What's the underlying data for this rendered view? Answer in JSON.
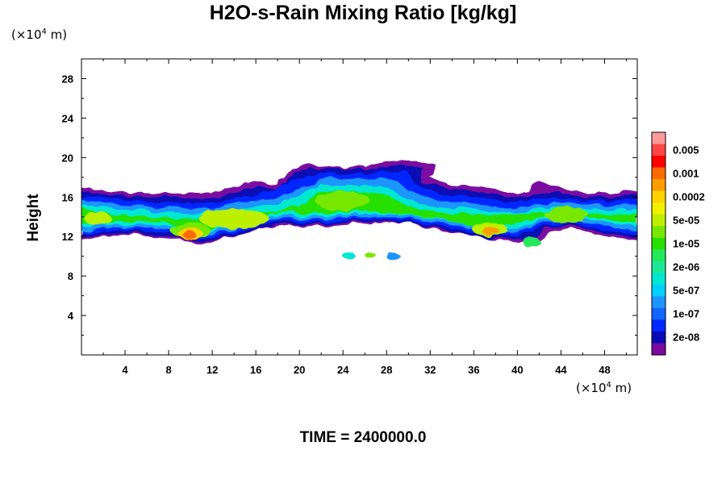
{
  "title": "H2O-s-Rain Mixing Ratio [kg/kg]",
  "y_unit": {
    "prefix": "(×10",
    "exp": "4",
    "suffix": " m)"
  },
  "x_unit": {
    "prefix": "(×10",
    "exp": "4",
    "suffix": " m)"
  },
  "ylabel": "Height",
  "footer": "TIME = 2400000.0",
  "chart_data": {
    "type": "contour",
    "title": "H2O-s-Rain Mixing Ratio [kg/kg]",
    "xlabel": "",
    "ylabel": "Height",
    "x_unit": "×10^4 m",
    "y_unit": "×10^4 m",
    "xlim": [
      0,
      51
    ],
    "ylim": [
      0,
      30
    ],
    "xticks": [
      4,
      8,
      12,
      16,
      20,
      24,
      28,
      32,
      36,
      40,
      44,
      48
    ],
    "yticks": [
      4,
      8,
      12,
      16,
      20,
      24,
      28
    ],
    "grid": false,
    "legend_position": "right",
    "colorbar": [
      {
        "label": "",
        "color": "#ff9a9a"
      },
      {
        "label": "0.005",
        "color": "#ff4646"
      },
      {
        "label": "",
        "color": "#ff0000"
      },
      {
        "label": "0.001",
        "color": "#ff6a00"
      },
      {
        "label": "",
        "color": "#ff9c00"
      },
      {
        "label": "0.0002",
        "color": "#ffd200"
      },
      {
        "label": "",
        "color": "#f0f000"
      },
      {
        "label": "5e-05",
        "color": "#bcf000"
      },
      {
        "label": "",
        "color": "#78e800"
      },
      {
        "label": "1e-05",
        "color": "#28e000"
      },
      {
        "label": "",
        "color": "#22e85a"
      },
      {
        "label": "2e-06",
        "color": "#1ee896"
      },
      {
        "label": "",
        "color": "#00e8d2"
      },
      {
        "label": "5e-07",
        "color": "#00d0ff"
      },
      {
        "label": "",
        "color": "#1e96ff"
      },
      {
        "label": "1e-07",
        "color": "#1464ff"
      },
      {
        "label": "",
        "color": "#0028ff"
      },
      {
        "label": "2e-08",
        "color": "#0a0ab4"
      },
      {
        "label": "",
        "color": "#7a0aa0"
      }
    ],
    "field": [
      {
        "x_range": [
          0,
          51
        ],
        "y_range": [
          11.5,
          16.8
        ],
        "level": "2e-08",
        "note": "main cloud band"
      },
      {
        "x_range": [
          19,
          32.5
        ],
        "y_range": [
          13,
          19.7
        ],
        "level": "1e-07"
      },
      {
        "x_range": [
          9,
          11.5
        ],
        "y_range": [
          11,
          13.5
        ],
        "level": "0.0002"
      },
      {
        "x_range": [
          24,
          30
        ],
        "y_range": [
          9.8,
          10.4
        ],
        "level": "5e-07"
      }
    ]
  }
}
